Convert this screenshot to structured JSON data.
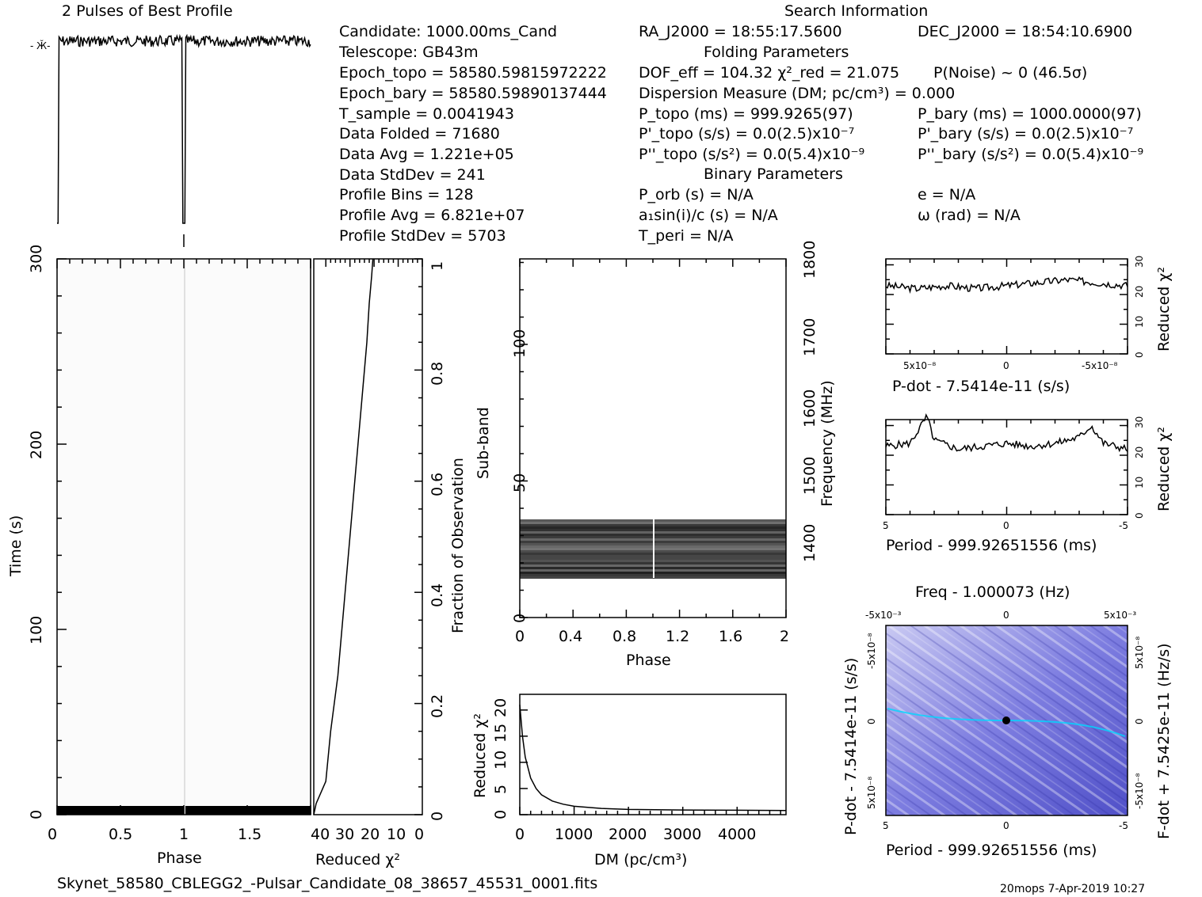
{
  "header": {
    "profile_title": "2 Pulses of Best Profile",
    "search_title": "Search Information",
    "folding_title": "Folding Parameters",
    "binary_title": "Binary Parameters"
  },
  "info_left": [
    "Candidate:  1000.00ms_Cand",
    "Telescope:  GB43m",
    "Epoch_topo = 58580.59815972222",
    "Epoch_bary = 58580.59890137444",
    "T_sample       =  0.0041943",
    "Data Folded    =  71680",
    "Data Avg       =  1.221e+05",
    "Data StdDev    =  241",
    "Profile Bins   =  128",
    "Profile Avg    =  6.821e+07",
    "Profile StdDev =  5703"
  ],
  "info_mid": [
    "RA_J2000 = 18:55:17.5600",
    "DOF_eff = 104.32  χ²_red = 21.075",
    "Dispersion Measure (DM; pc/cm³) = 0.000",
    "P_topo (ms) =  999.9265(97)",
    "P'_topo (s/s) = 0.0(2.5)x10⁻⁷",
    "P''_topo (s/s²) = 0.0(5.4)x10⁻⁹",
    "P_orb (s) = N/A",
    "a₁sin(i)/c (s) = N/A",
    "T_peri = N/A"
  ],
  "info_right": [
    "DEC_J2000 = 18:54:10.6900",
    "P(Noise) ~ 0   (46.5σ)",
    "P_bary (ms) =  1000.0000(97)",
    "P'_bary (s/s) = 0.0(2.5)x10⁻⁷",
    "P''_bary (s/s²) = 0.0(5.4)x10⁻⁹",
    "e = N/A",
    "ω (rad) = N/A"
  ],
  "footer": {
    "filename": "Skynet_58580_CBLEGG2_-Pulsar_Candidate_08_38657_45531_0001.fits",
    "stamp": "20mops  7-Apr-2019 10:27"
  },
  "colors": {
    "ink": "#000000",
    "heatmap_low": "#d7d7f5",
    "heatmap_high": "#2a2aa0",
    "peak": "#00e0ff"
  },
  "chart_data": [
    {
      "type": "line",
      "id": "profile",
      "title": "2 Pulses of Best Profile",
      "x": [
        0,
        0.5,
        1,
        1.5,
        2
      ],
      "description_values": "flat noisy baseline with two narrow dips at phase 0 and phase 1"
    },
    {
      "type": "heatmap",
      "id": "time-phase",
      "xlabel": "Phase",
      "ylabel": "Time (s)",
      "xticks": [
        "0",
        "0.5",
        "1",
        "1.5"
      ],
      "yticks": [
        "0",
        "100",
        "200",
        "300"
      ],
      "xlim": [
        0,
        2
      ],
      "ylim": [
        0,
        300
      ]
    },
    {
      "type": "line",
      "id": "time-chi2",
      "xlabel": "Reduced χ²",
      "ylabel": "Fraction of Observation",
      "xticks": [
        "40",
        "30",
        "20",
        "10",
        "0"
      ],
      "yticks": [
        "0",
        "0.2",
        "0.4",
        "0.6",
        "0.8",
        "1"
      ],
      "x": [
        45,
        44,
        40,
        38,
        35,
        33,
        31,
        29,
        27,
        25,
        23,
        22,
        21,
        20.5
      ],
      "y": [
        0.0,
        0.02,
        0.06,
        0.15,
        0.25,
        0.35,
        0.45,
        0.55,
        0.65,
        0.75,
        0.85,
        0.92,
        0.97,
        1.0
      ]
    },
    {
      "type": "heatmap",
      "id": "subband-phase",
      "xlabel": "Phase",
      "ylabel": "Sub-band",
      "ylabel2": "Frequency (MHz)",
      "xticks": [
        "0",
        "0.4",
        "0.8",
        "1.2",
        "1.6",
        "2"
      ],
      "yticks": [
        "0",
        "50",
        "100"
      ],
      "yticks2": [
        "1400",
        "1500",
        "1600",
        "1700",
        "1800"
      ],
      "band": [
        15,
        35
      ]
    },
    {
      "type": "line",
      "id": "dm-chi2",
      "xlabel": "DM (pc/cm³)",
      "ylabel": "Reduced χ²",
      "xticks": [
        "0",
        "1000",
        "2000",
        "3000",
        "4000"
      ],
      "yticks": [
        "0",
        "5",
        "10",
        "15",
        "20"
      ],
      "x": [
        0,
        50,
        100,
        200,
        300,
        400,
        600,
        800,
        1000,
        1500,
        2000,
        3000,
        4000,
        4900
      ],
      "y": [
        21,
        15,
        11,
        7,
        5,
        3.8,
        2.6,
        2.0,
        1.6,
        1.2,
        1.0,
        0.9,
        0.85,
        0.8
      ]
    },
    {
      "type": "line",
      "id": "pdot-chi2",
      "xlabel": "P-dot - 7.5414e-11 (s/s)",
      "ylabel": "Reduced χ²",
      "xticks": [
        "5x10⁻⁸",
        "0",
        "-5x10⁻⁸"
      ],
      "yticks": [
        "0",
        "10",
        "20",
        "30"
      ],
      "x": [
        -8,
        -6,
        -4,
        -2,
        0,
        2,
        4,
        6,
        8
      ],
      "y": [
        23,
        22,
        23,
        22,
        23,
        24,
        25,
        24,
        23
      ]
    },
    {
      "type": "line",
      "id": "period-chi2",
      "xlabel": "Period - 999.92651556 (ms)",
      "ylabel": "Reduced χ²",
      "xticks": [
        "5",
        "0",
        "-5"
      ],
      "yticks": [
        "0",
        "10",
        "20",
        "30"
      ],
      "x": [
        5,
        4,
        3.3,
        3,
        2,
        1,
        0,
        -1,
        -2,
        -3,
        -3.5,
        -4,
        -5
      ],
      "y": [
        23,
        24,
        33,
        25,
        22,
        23,
        24,
        23,
        24,
        26,
        30,
        24,
        22
      ]
    },
    {
      "type": "heatmap",
      "id": "p-pdot",
      "title": "Freq - 1.000073 (Hz)",
      "xlabel": "Period - 999.92651556 (ms)",
      "ylabel": "P-dot - 7.5414e-11 (s/s)",
      "ylabel2": "F-dot + 7.5425e-11 (Hz/s)",
      "xticks": [
        "5",
        "0",
        "-5"
      ],
      "xticks_top": [
        "-5x10⁻³",
        "0",
        "5x10⁻³"
      ],
      "yticks": [
        "-5x10⁻⁸",
        "0",
        "5x10⁻⁸"
      ],
      "yticks2": [
        "5x10⁻⁸",
        "0",
        "-5x10⁻⁸"
      ]
    }
  ]
}
